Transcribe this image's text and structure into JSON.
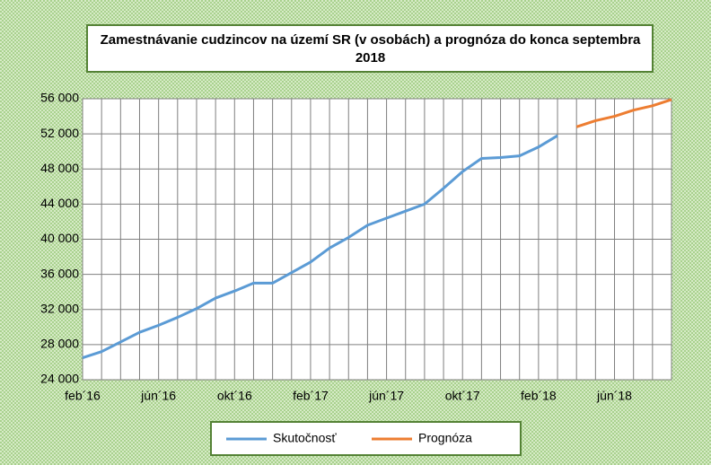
{
  "chart_data": {
    "type": "line",
    "title": "Zamestnávanie cudzincov na území SR (v osobách) a prognóza do konca septembra 2018",
    "categories": [
      "feb´16",
      null,
      null,
      null,
      "jún´16",
      null,
      null,
      null,
      "okt´16",
      null,
      null,
      null,
      "feb´17",
      null,
      null,
      null,
      "jún´17",
      null,
      null,
      null,
      "okt´17",
      null,
      null,
      null,
      "feb´18",
      null,
      null,
      null,
      "jún´18",
      null,
      null,
      null
    ],
    "series": [
      {
        "name": "Skutočnosť",
        "color": "#5b9bd5",
        "values": [
          26500,
          27200,
          28300,
          29400,
          30200,
          31100,
          32100,
          33300,
          34100,
          35000,
          35000,
          36200,
          37400,
          39000,
          40200,
          41600,
          42400,
          43200,
          44000,
          45800,
          47700,
          49200,
          49300,
          49500,
          50500,
          51800,
          null,
          null,
          null,
          null,
          null,
          null
        ]
      },
      {
        "name": "Prognóza",
        "color": "#ed7d31",
        "values": [
          null,
          null,
          null,
          null,
          null,
          null,
          null,
          null,
          null,
          null,
          null,
          null,
          null,
          null,
          null,
          null,
          null,
          null,
          null,
          null,
          null,
          null,
          null,
          null,
          null,
          null,
          52800,
          53500,
          54000,
          54700,
          55200,
          55900
        ]
      }
    ],
    "ylim": [
      24000,
      56000
    ],
    "yticks": [
      {
        "value": 24000,
        "label": "24 000"
      },
      {
        "value": 28000,
        "label": "28 000"
      },
      {
        "value": 32000,
        "label": "32 000"
      },
      {
        "value": 36000,
        "label": "36 000"
      },
      {
        "value": 40000,
        "label": "40 000"
      },
      {
        "value": 44000,
        "label": "44 000"
      },
      {
        "value": 48000,
        "label": "48 000"
      },
      {
        "value": 52000,
        "label": "52 000"
      },
      {
        "value": 56000,
        "label": "56 000"
      }
    ],
    "grid": true,
    "legend": "bottom"
  }
}
